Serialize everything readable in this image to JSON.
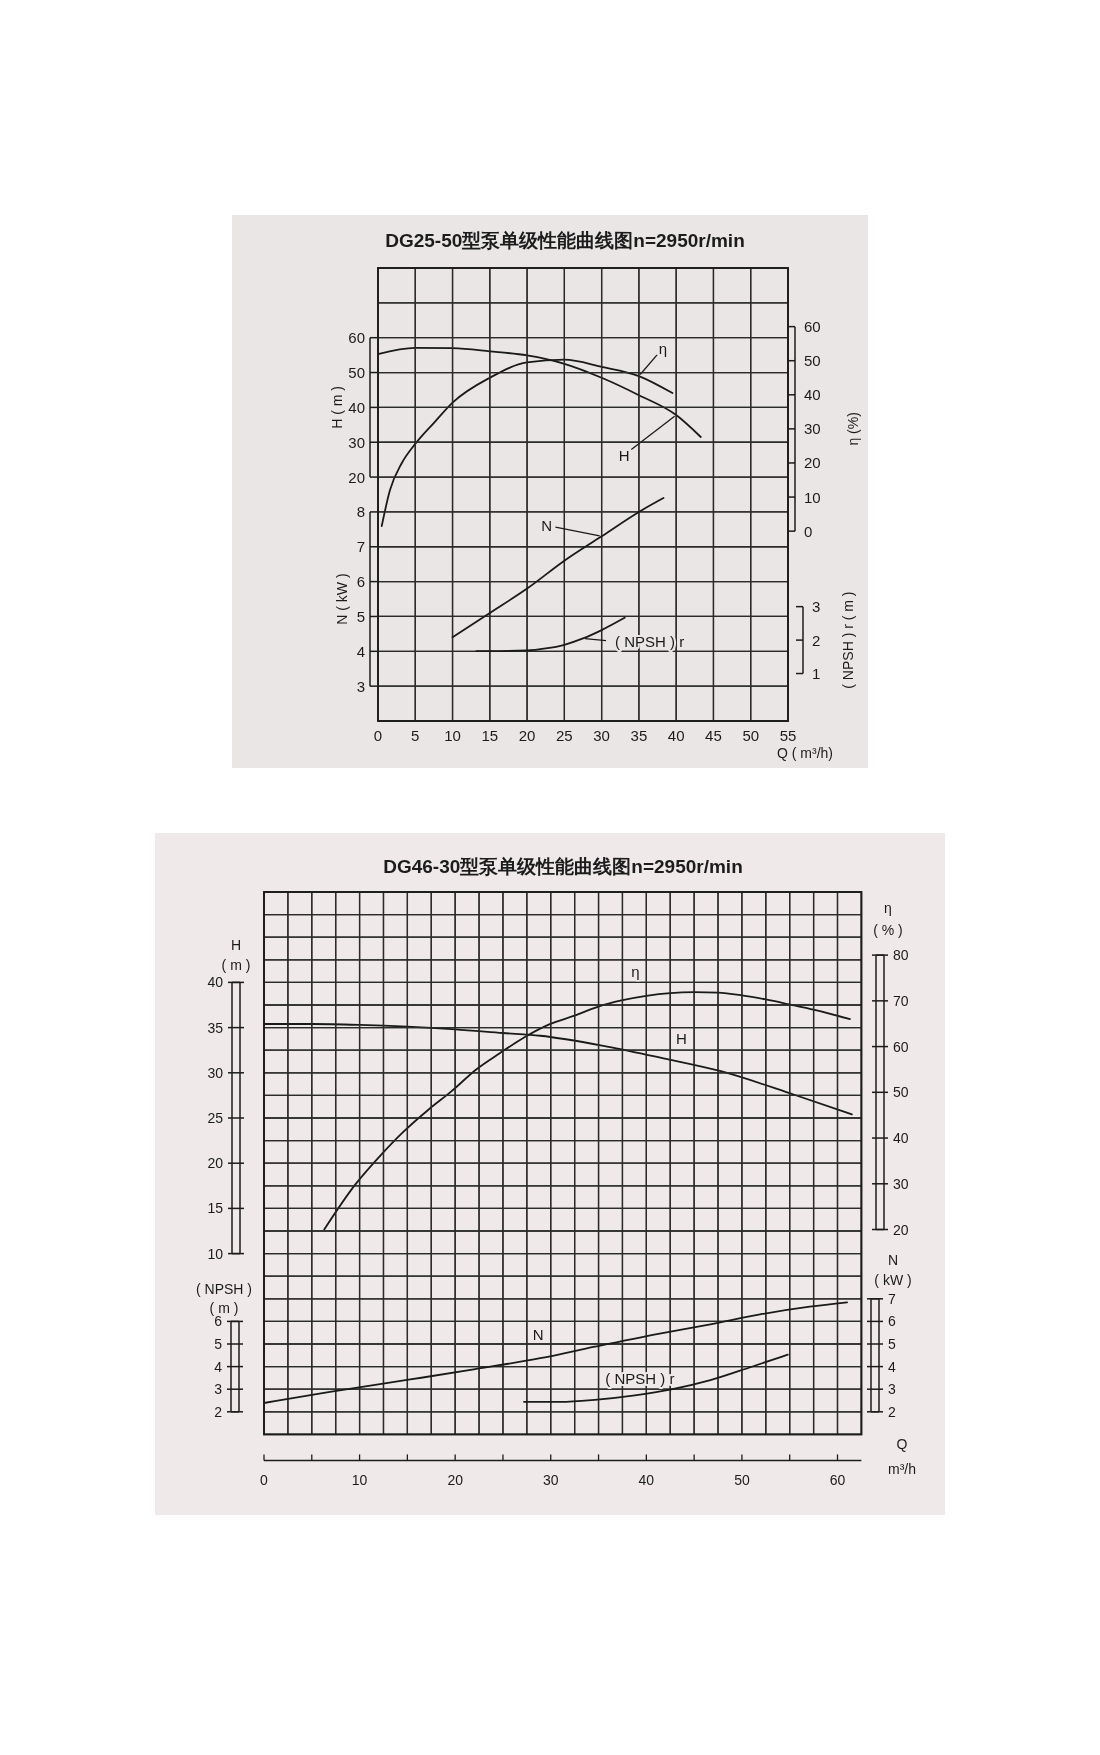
{
  "chart_data": [
    {
      "type": "line",
      "title": "DG25-50型泵单级性能曲线图n=2950r/min",
      "ylabel": "H ( m )",
      "y2label": "η (%)",
      "xlim": [
        0,
        55
      ],
      "xticks": [
        0,
        5,
        10,
        15,
        20,
        25,
        30,
        35,
        40,
        45,
        50,
        55
      ],
      "tick_labels": "y",
      "ylim": [
        -50,
        80
      ],
      "yticks": [
        20,
        30,
        40,
        50,
        60
      ],
      "y2lim": [
        -55.7,
        77.2
      ],
      "y2ticks": [
        0,
        10,
        20,
        30,
        40,
        50,
        60
      ],
      "grid": true,
      "line_style": "solid",
      "series": [
        {
          "name": "η",
          "axis": "y2",
          "color": "#1a1a1a",
          "x": [
            0.5,
            1.6,
            3.2,
            5,
            7.6,
            10,
            15,
            20,
            25,
            30,
            35,
            39.5
          ],
          "values": [
            1.5,
            12,
            20,
            25.6,
            32,
            37.7,
            45,
            49.5,
            50.3,
            48.2,
            45.5,
            40.5
          ]
        },
        {
          "name": "H",
          "color": "#1a1a1a",
          "x": [
            0,
            5,
            10,
            15,
            20,
            25,
            30,
            35,
            40,
            43.3
          ],
          "values": [
            55.3,
            57.1,
            57,
            56.1,
            54.9,
            52.5,
            48.5,
            43.5,
            37.8,
            31.5
          ]
        }
      ]
    },
    {
      "type": "line",
      "xlabel": "Q ( m³/h)",
      "ylabel": "N ( kW )",
      "y2label": "( NPSH ) r ( m )",
      "xlim": [
        0,
        55
      ],
      "xticks": [
        0,
        5,
        10,
        15,
        20,
        25,
        30,
        35,
        40,
        45,
        50,
        55
      ],
      "ylim": [
        2,
        15
      ],
      "yticks": [
        3,
        4,
        5,
        6,
        7,
        8
      ],
      "y2lim": [
        -0.42,
        13.13
      ],
      "y2ticks": [
        1,
        2,
        3
      ],
      "grid": true,
      "line_style": "solid",
      "series": [
        {
          "name": "N",
          "color": "#1a1a1a",
          "x": [
            10,
            15,
            20,
            25,
            30,
            35,
            38.3
          ],
          "values": [
            4.4,
            5.1,
            5.8,
            6.6,
            7.3,
            8,
            8.4
          ]
        },
        {
          "name": "( NPSH ) r",
          "axis": "y2",
          "color": "#1a1a1a",
          "x": [
            13.2,
            15,
            20,
            22.5,
            25,
            27.5,
            30,
            33.1
          ],
          "values": [
            1.67,
            1.67,
            1.69,
            1.75,
            1.86,
            2.05,
            2.3,
            2.67
          ]
        }
      ]
    },
    {
      "type": "line",
      "title": "DG46-30型泵单级性能曲线图n=2950r/min",
      "ylabel": "H\n( m )",
      "y2label": "η\n( % )",
      "xlim": [
        0,
        62.5
      ],
      "xticks": [
        0,
        {
          "value": 5,
          "label": null
        },
        10,
        {
          "value": 15,
          "label": null
        },
        20,
        {
          "value": 25,
          "label": null
        },
        30,
        {
          "value": 35,
          "label": null
        },
        40,
        {
          "value": 45,
          "label": null
        },
        50,
        {
          "value": 55,
          "label": null
        },
        60
      ],
      "tick_labels": "y",
      "ylim": [
        -10,
        50
      ],
      "yticks": [
        10,
        15,
        20,
        25,
        30,
        35,
        40
      ],
      "y2lim": [
        -24.8,
        93.8
      ],
      "y2ticks": [
        20,
        30,
        40,
        50,
        60,
        70,
        80
      ],
      "grid": true,
      "line_style": "solid",
      "series": [
        {
          "name": "η",
          "axis": "y2",
          "color": "#1a1a1a",
          "x": [
            6.3,
            9.5,
            12.1,
            14.6,
            17.2,
            19.6,
            22.2,
            24.7,
            27.3,
            29.9,
            32.4,
            34.9,
            37.4,
            40,
            42.5,
            45,
            47.5,
            50,
            52.5,
            55,
            57.6,
            61.3
          ],
          "values": [
            20,
            29.7,
            36,
            41.4,
            46.2,
            50.2,
            55,
            58.6,
            62.1,
            64.9,
            66.7,
            68.7,
            70.1,
            71.1,
            71.7,
            71.9,
            71.8,
            71.2,
            70.3,
            69.2,
            68,
            66
          ]
        },
        {
          "name": "H",
          "color": "#1a1a1a",
          "x": [
            0,
            5,
            10,
            15,
            20,
            25,
            28.9,
            35.9,
            41.8,
            47.7,
            55.4,
            61.5
          ],
          "values": [
            35.4,
            35.4,
            35.3,
            35.1,
            34.8,
            34.4,
            34.1,
            32.9,
            31.6,
            30.2,
            27.6,
            25.4
          ]
        }
      ]
    },
    {
      "type": "line",
      "xlabel": "Q\nm³/h",
      "ylabel": "( NPSH )\n( m )",
      "y2label": "N\n( kW )",
      "xlim": [
        0,
        62.5
      ],
      "xticks": [
        0,
        {
          "value": 5,
          "label": null
        },
        10,
        {
          "value": 15,
          "label": null
        },
        20,
        {
          "value": 25,
          "label": null
        },
        30,
        {
          "value": 35,
          "label": null
        },
        40,
        {
          "value": 45,
          "label": null
        },
        50,
        {
          "value": 55,
          "label": null
        },
        60
      ],
      "ylim": [
        1,
        25
      ],
      "yticks": [
        2,
        3,
        4,
        5,
        6
      ],
      "y2lim": [
        1,
        25
      ],
      "y2ticks": [
        2,
        3,
        4,
        5,
        6,
        7
      ],
      "grid": true,
      "line_style": "solid",
      "series": [
        {
          "name": "N",
          "axis": "y2",
          "color": "#1a1a1a",
          "x": [
            0,
            6.9,
            15.3,
            22.1,
            28.9,
            34.6,
            41.4,
            46.7,
            51.9,
            57.1,
            61
          ],
          "values": [
            2.39,
            2.88,
            3.43,
            3.89,
            4.37,
            4.88,
            5.46,
            5.87,
            6.31,
            6.65,
            6.84
          ]
        },
        {
          "name": "( NPSH ) r",
          "color": "#1a1a1a",
          "x": [
            27.2,
            31,
            34.6,
            38.8,
            42.5,
            46.7,
            50.8,
            54.8
          ],
          "values": [
            2.44,
            2.44,
            2.53,
            2.73,
            2.98,
            3.4,
            3.96,
            4.53
          ]
        }
      ]
    }
  ]
}
